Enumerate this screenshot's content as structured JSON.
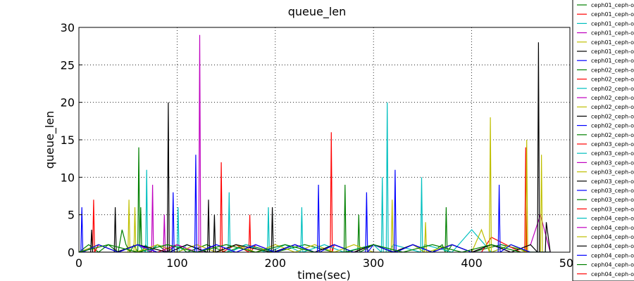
{
  "chart_data": {
    "type": "line",
    "title": "queue_len",
    "xlabel": "time(sec)",
    "ylabel": "queue_len",
    "xlim": [
      0,
      500
    ],
    "ylim": [
      0,
      30
    ],
    "xticks": [
      0,
      100,
      200,
      300,
      400,
      500
    ],
    "yticks": [
      0,
      5,
      10,
      15,
      20,
      25,
      30
    ],
    "grid": true,
    "legend_position": "right-outside",
    "series": [
      {
        "name": "ceph01_ceph-o",
        "color": "#008000",
        "x": [
          0,
          10,
          20,
          30,
          40,
          44,
          48,
          52,
          56,
          60,
          61,
          62,
          63,
          64,
          68,
          72,
          80,
          90,
          100,
          110,
          130,
          150,
          170,
          200,
          230,
          260,
          284,
          285,
          286,
          300,
          320,
          340,
          360,
          370,
          373,
          374,
          375,
          380,
          400,
          430,
          460,
          480
        ],
        "values": [
          0,
          1,
          0,
          1,
          0,
          3,
          1,
          0,
          1,
          0,
          14,
          1,
          6,
          0,
          1,
          0,
          1,
          0,
          1,
          0,
          1,
          0,
          1,
          0,
          1,
          0,
          0,
          5,
          0,
          1,
          0,
          1,
          0,
          1,
          0,
          6,
          0,
          1,
          0,
          1,
          0,
          0
        ]
      },
      {
        "name": "ceph01_ceph-o",
        "color": "#ff0000",
        "x": [
          0,
          14,
          15,
          16,
          20,
          40,
          60,
          80,
          100,
          120,
          144,
          145,
          146,
          160,
          173,
          174,
          175,
          180,
          200,
          220,
          240,
          256,
          257,
          258,
          260,
          280,
          300,
          320,
          340,
          360,
          380,
          400,
          410,
          420,
          450,
          454,
          455,
          456,
          480
        ],
        "values": [
          0,
          0,
          7,
          0,
          1,
          0,
          1,
          0,
          1,
          0,
          0,
          12,
          0,
          1,
          0,
          5,
          0,
          1,
          0,
          1,
          0,
          0,
          16,
          0,
          1,
          0,
          1,
          0,
          1,
          0,
          1,
          0,
          0,
          2,
          0,
          0,
          14,
          0,
          0
        ]
      },
      {
        "name": "ceph01_ceph-o",
        "color": "#00bfbf",
        "x": [
          0,
          20,
          40,
          60,
          68,
          69,
          70,
          80,
          100,
          101,
          102,
          110,
          130,
          152,
          153,
          154,
          170,
          190,
          192,
          193,
          194,
          210,
          226,
          227,
          228,
          250,
          270,
          300,
          308,
          309,
          310,
          313,
          314,
          315,
          316,
          320,
          348,
          349,
          350,
          352,
          380,
          400,
          420,
          440,
          460,
          480
        ],
        "values": [
          0,
          1,
          0,
          1,
          0,
          11,
          0,
          1,
          0,
          6,
          0,
          1,
          0,
          0,
          8,
          0,
          1,
          0,
          0,
          6,
          0,
          1,
          0,
          6,
          0,
          1,
          0,
          1,
          0,
          10,
          0,
          0,
          20,
          0,
          0,
          1,
          0,
          10,
          0,
          1,
          0,
          3,
          0,
          1,
          0,
          0
        ]
      },
      {
        "name": "ceph01_ceph-o",
        "color": "#bf00bf",
        "x": [
          0,
          20,
          40,
          60,
          74,
          75,
          76,
          86,
          87,
          88,
          100,
          120,
          122,
          123,
          124,
          140,
          160,
          180,
          200,
          220,
          240,
          260,
          280,
          300,
          320,
          340,
          360,
          380,
          400,
          420,
          440,
          460,
          470,
          480
        ],
        "values": [
          0,
          1,
          0,
          1,
          0,
          9,
          0,
          0,
          5,
          0,
          1,
          0,
          0,
          29,
          0,
          1,
          0,
          1,
          0,
          1,
          0,
          1,
          0,
          1,
          0,
          1,
          0,
          1,
          0,
          1,
          0,
          1,
          5,
          0
        ]
      },
      {
        "name": "ceph01_ceph-o",
        "color": "#bfbf00",
        "x": [
          0,
          20,
          40,
          50,
          51,
          52,
          56,
          57,
          58,
          80,
          100,
          120,
          140,
          160,
          180,
          200,
          220,
          240,
          260,
          280,
          300,
          318,
          319,
          320,
          340,
          352,
          353,
          354,
          380,
          400,
          410,
          418,
          419,
          420,
          440,
          455,
          456,
          457,
          470,
          471,
          472,
          480
        ],
        "values": [
          0,
          1,
          0,
          0,
          7,
          0,
          0,
          6,
          0,
          1,
          0,
          1,
          0,
          1,
          0,
          1,
          0,
          1,
          0,
          1,
          0,
          0,
          7,
          0,
          1,
          0,
          4,
          0,
          1,
          0,
          3,
          0,
          18,
          0,
          1,
          0,
          15,
          0,
          0,
          13,
          0,
          0
        ]
      },
      {
        "name": "ceph01_ceph-o",
        "color": "#000000",
        "x": [
          0,
          12,
          13,
          14,
          36,
          37,
          38,
          60,
          90,
          91,
          92,
          110,
          131,
          132,
          133,
          137,
          138,
          139,
          160,
          196,
          197,
          198,
          220,
          240,
          260,
          280,
          300,
          320,
          340,
          360,
          380,
          400,
          420,
          440,
          460,
          467,
          468,
          469,
          475,
          476,
          480
        ],
        "values": [
          0,
          0,
          3,
          0,
          0,
          6,
          0,
          1,
          0,
          20,
          0,
          1,
          0,
          7,
          0,
          0,
          5,
          0,
          1,
          0,
          6,
          0,
          1,
          0,
          1,
          0,
          1,
          0,
          1,
          0,
          1,
          0,
          1,
          0,
          1,
          0,
          28,
          0,
          0,
          4,
          0
        ]
      },
      {
        "name": "ceph01_ceph-o",
        "color": "#0000ff",
        "x": [
          0,
          2,
          3,
          4,
          20,
          40,
          60,
          80,
          95,
          96,
          97,
          118,
          119,
          120,
          140,
          160,
          180,
          200,
          220,
          240,
          243,
          244,
          245,
          260,
          280,
          292,
          293,
          294,
          300,
          321,
          322,
          323,
          340,
          360,
          380,
          400,
          427,
          428,
          429,
          440,
          460,
          480
        ],
        "values": [
          0,
          0,
          6,
          0,
          1,
          0,
          1,
          0,
          0,
          8,
          0,
          0,
          13,
          0,
          1,
          0,
          1,
          0,
          1,
          0,
          0,
          9,
          0,
          1,
          0,
          0,
          8,
          0,
          1,
          0,
          11,
          0,
          1,
          0,
          1,
          0,
          0,
          9,
          0,
          1,
          0,
          0
        ]
      },
      {
        "name": "ceph02_ceph-o",
        "color": "#008000",
        "x": [
          0,
          30,
          60,
          90,
          120,
          150,
          180,
          210,
          240,
          270,
          271,
          272,
          300,
          330,
          360,
          390,
          420,
          450,
          480
        ],
        "values": [
          0,
          1,
          0,
          1,
          0,
          1,
          0,
          1,
          0,
          0,
          9,
          0,
          1,
          0,
          1,
          0,
          1,
          0,
          0
        ]
      },
      {
        "name": "ceph02_ceph-o",
        "color": "#ff0000",
        "x": [],
        "values": []
      },
      {
        "name": "ceph02_ceph-o",
        "color": "#00bfbf",
        "x": [],
        "values": []
      },
      {
        "name": "ceph02_ceph-o",
        "color": "#bf00bf",
        "x": [],
        "values": []
      },
      {
        "name": "ceph02_ceph-o",
        "color": "#bfbf00",
        "x": [],
        "values": []
      },
      {
        "name": "ceph02_ceph-o",
        "color": "#000000",
        "x": [],
        "values": []
      },
      {
        "name": "ceph02_ceph-o",
        "color": "#0000ff",
        "x": [],
        "values": []
      },
      {
        "name": "ceph02_ceph-o",
        "color": "#008000",
        "x": [],
        "values": []
      },
      {
        "name": "ceph03_ceph-o",
        "color": "#ff0000",
        "x": [],
        "values": []
      },
      {
        "name": "ceph03_ceph-o",
        "color": "#00bfbf",
        "x": [],
        "values": []
      },
      {
        "name": "ceph03_ceph-o",
        "color": "#bf00bf",
        "x": [],
        "values": []
      },
      {
        "name": "ceph03_ceph-o",
        "color": "#bfbf00",
        "x": [],
        "values": []
      },
      {
        "name": "ceph03_ceph-o",
        "color": "#000000",
        "x": [],
        "values": []
      },
      {
        "name": "ceph03_ceph-o",
        "color": "#0000ff",
        "x": [],
        "values": []
      },
      {
        "name": "ceph03_ceph-o",
        "color": "#008000",
        "x": [],
        "values": []
      },
      {
        "name": "ceph03_ceph-o",
        "color": "#ff0000",
        "x": [],
        "values": []
      },
      {
        "name": "ceph04_ceph-o",
        "color": "#00bfbf",
        "x": [],
        "values": []
      },
      {
        "name": "ceph04_ceph-o",
        "color": "#bf00bf",
        "x": [],
        "values": []
      },
      {
        "name": "ceph04_ceph-o",
        "color": "#bfbf00",
        "x": [],
        "values": []
      },
      {
        "name": "ceph04_ceph-o",
        "color": "#000000",
        "x": [],
        "values": []
      },
      {
        "name": "ceph04_ceph-o",
        "color": "#0000ff",
        "x": [],
        "values": []
      },
      {
        "name": "ceph04_ceph-o",
        "color": "#008000",
        "x": [],
        "values": []
      },
      {
        "name": "ceph04_ceph-o",
        "color": "#ff0000",
        "x": [],
        "values": []
      }
    ]
  }
}
